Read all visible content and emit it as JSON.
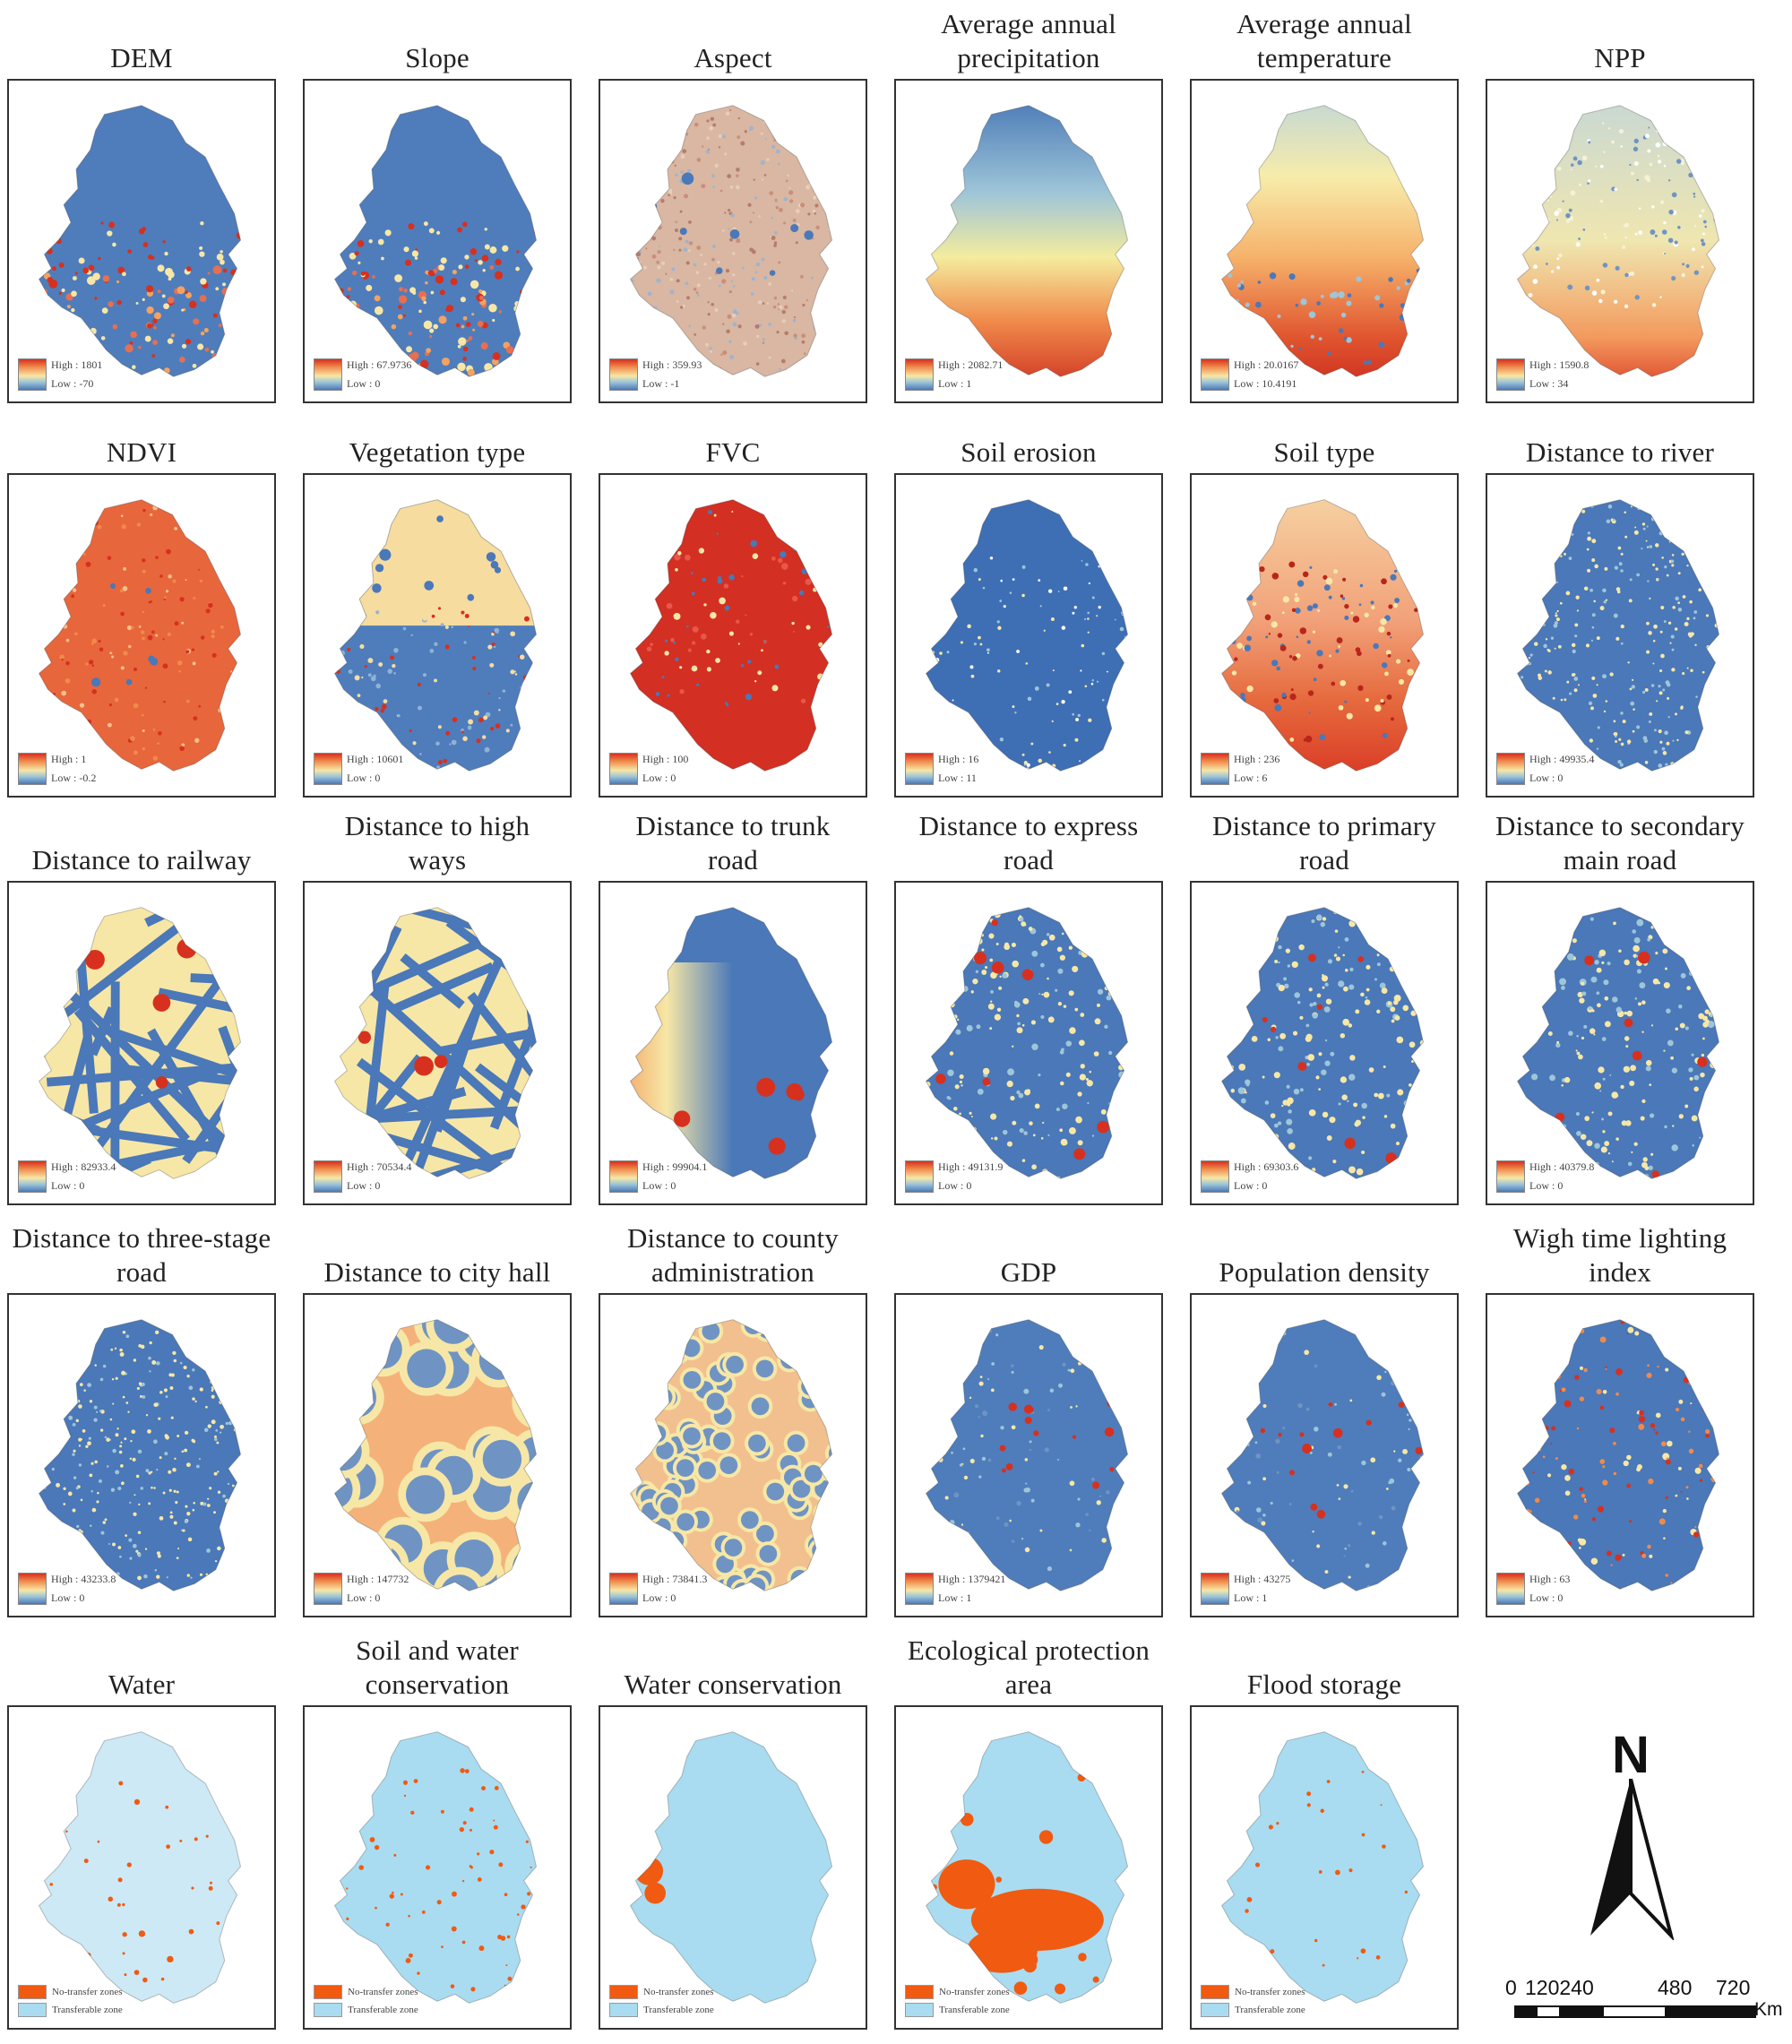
{
  "panels": [
    {
      "id": "dem",
      "title": [
        "DEM"
      ],
      "palette": "dem",
      "legend": {
        "high": "High : 1801",
        "low": "Low : -70"
      }
    },
    {
      "id": "slope",
      "title": [
        "Slope"
      ],
      "palette": "slope",
      "legend": {
        "high": "High : 67.9736",
        "low": "Low : 0"
      }
    },
    {
      "id": "aspect",
      "title": [
        "Aspect"
      ],
      "palette": "aspect",
      "legend": {
        "high": "High : 359.93",
        "low": "Low : -1"
      }
    },
    {
      "id": "precip",
      "title": [
        "Average annual",
        "precipitation"
      ],
      "palette": "precip",
      "legend": {
        "high": "High : 2082.71",
        "low": "Low : 1"
      }
    },
    {
      "id": "temp",
      "title": [
        "Average annual",
        "temperature"
      ],
      "palette": "temp",
      "legend": {
        "high": "High : 20.0167",
        "low": "Low : 10.4191"
      }
    },
    {
      "id": "npp",
      "title": [
        "NPP"
      ],
      "palette": "npp",
      "legend": {
        "high": "High : 1590.8",
        "low": "Low : 34"
      }
    },
    {
      "id": "ndvi",
      "title": [
        "NDVI"
      ],
      "palette": "ndvi",
      "legend": {
        "high": "High : 1",
        "low": "Low : -0.2"
      }
    },
    {
      "id": "vegtype",
      "title": [
        "Vegetation type"
      ],
      "palette": "veg",
      "legend": {
        "high": "High : 10601",
        "low": "Low : 0"
      }
    },
    {
      "id": "fvc",
      "title": [
        "FVC"
      ],
      "palette": "fvc",
      "legend": {
        "high": "High : 100",
        "low": "Low : 0"
      }
    },
    {
      "id": "erosion",
      "title": [
        "Soil erosion"
      ],
      "palette": "erosion",
      "legend": {
        "high": "High : 16",
        "low": "Low : 11"
      }
    },
    {
      "id": "soiltype",
      "title": [
        "Soil type"
      ],
      "palette": "soil",
      "legend": {
        "high": "High : 236",
        "low": "Low : 6"
      }
    },
    {
      "id": "river",
      "title": [
        "Distance to river"
      ],
      "palette": "river",
      "legend": {
        "high": "High : 49935.4",
        "low": "Low : 0"
      }
    },
    {
      "id": "railway",
      "title": [
        "Distance to railway"
      ],
      "palette": "roads",
      "legend": {
        "high": "High : 82933.4",
        "low": "Low : 0"
      }
    },
    {
      "id": "highways",
      "title": [
        "Distance to high",
        "ways"
      ],
      "palette": "roads",
      "legend": {
        "high": "High : 70534.4",
        "low": "Low : 0"
      }
    },
    {
      "id": "trunk",
      "title": [
        "Distance to trunk",
        "road"
      ],
      "palette": "trunk",
      "legend": {
        "high": "High : 99904.1",
        "low": "Low : 0"
      }
    },
    {
      "id": "express",
      "title": [
        "Distance to express",
        "road"
      ],
      "palette": "dense",
      "legend": {
        "high": "High : 49131.9",
        "low": "Low : 0"
      }
    },
    {
      "id": "primary",
      "title": [
        "Distance to primary",
        "road"
      ],
      "palette": "dense",
      "legend": {
        "high": "High : 69303.6",
        "low": "Low : 0"
      }
    },
    {
      "id": "secondary",
      "title": [
        "Distance to secondary",
        "main road"
      ],
      "palette": "dense",
      "legend": {
        "high": "High : 40379.8",
        "low": "Low : 0"
      }
    },
    {
      "id": "threestage",
      "title": [
        "Distance to three-stage",
        "road"
      ],
      "palette": "river",
      "legend": {
        "high": "High : 43233.8",
        "low": "Low : 0"
      }
    },
    {
      "id": "cityhall",
      "title": [
        "Distance to city hall"
      ],
      "palette": "cityhall",
      "legend": {
        "high": "High : 147732",
        "low": "Low : 0"
      }
    },
    {
      "id": "county",
      "title": [
        "Distance to county",
        "administration"
      ],
      "palette": "county",
      "legend": {
        "high": "High : 73841.3",
        "low": "Low : 0"
      }
    },
    {
      "id": "gdp",
      "title": [
        "GDP"
      ],
      "palette": "gdp",
      "legend": {
        "high": "High : 1379421",
        "low": "Low : 1"
      }
    },
    {
      "id": "popdens",
      "title": [
        "Population density"
      ],
      "palette": "gdp",
      "legend": {
        "high": "High : 43275",
        "low": "Low : 1"
      }
    },
    {
      "id": "nightlight",
      "title": [
        "Wigh time lighting",
        "index"
      ],
      "palette": "night",
      "legend": {
        "high": "High : 63",
        "low": "Low : 0"
      }
    },
    {
      "id": "water",
      "title": [
        "Water"
      ],
      "palette": "cat",
      "cat_legend": {
        "no_transfer": "No-transfer zones",
        "transferable": "Transferable zone"
      }
    },
    {
      "id": "soilwater",
      "title": [
        "Soil and water",
        "conservation"
      ],
      "palette": "cat",
      "cat_legend": {
        "no_transfer": "No-transfer zones",
        "transferable": "Transferable zone"
      }
    },
    {
      "id": "waterconservation",
      "title": [
        "Water conservation"
      ],
      "palette": "cat",
      "cat_legend": {
        "no_transfer": "No-transfer zones",
        "transferable": "Transferable zone"
      }
    },
    {
      "id": "ecoprotect",
      "title": [
        "Ecological protection",
        "area"
      ],
      "palette": "cat",
      "cat_legend": {
        "no_transfer": "No-transfer zones",
        "transferable": "Transferable zone"
      }
    },
    {
      "id": "flood",
      "title": [
        "Flood storage"
      ],
      "palette": "cat",
      "cat_legend": {
        "no_transfer": "No-transfer zones",
        "transferable": "Transferable zone"
      }
    }
  ],
  "colors": {
    "high": "#d7301f",
    "mid": "#f7e7a6",
    "low": "#4a78b8",
    "no_transfer": "#f15a11",
    "transferable": "#a9dcf0"
  },
  "north_arrow": {
    "letter": "N"
  },
  "scale_bar": {
    "ticks": [
      "0",
      "120240",
      "480",
      "720"
    ],
    "unit": "Km"
  }
}
